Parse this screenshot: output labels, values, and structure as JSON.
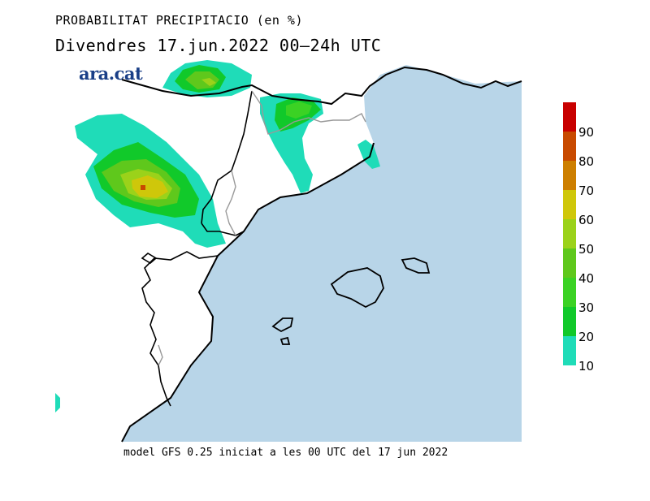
{
  "header": {
    "title": "PROBABILITAT PRECIPITACIO (en %)",
    "subtitle": "Divendres  17.jun.2022 00—24h UTC",
    "brand": "ara.cat"
  },
  "footer": {
    "model_note": "model GFS 0.25 iniciat a les 00 UTC del 17 jun 2022"
  },
  "legend": {
    "labels": [
      "90",
      "80",
      "70",
      "60",
      "50",
      "40",
      "30",
      "20",
      "10"
    ],
    "bins": [
      {
        "min": 10,
        "color": "#1fdcb8"
      },
      {
        "min": 20,
        "color": "#11c92a"
      },
      {
        "min": 30,
        "color": "#3bd224"
      },
      {
        "min": 40,
        "color": "#5fc81c"
      },
      {
        "min": 50,
        "color": "#9bd21a"
      },
      {
        "min": 60,
        "color": "#cfc70a"
      },
      {
        "min": 70,
        "color": "#cd7f00"
      },
      {
        "min": 80,
        "color": "#c84a00"
      },
      {
        "min": 90,
        "color": "#c80000"
      }
    ]
  },
  "colors": {
    "sea": "#b8d5e8",
    "land": "#ffffff",
    "coastline": "#000000",
    "border": "#999999"
  }
}
